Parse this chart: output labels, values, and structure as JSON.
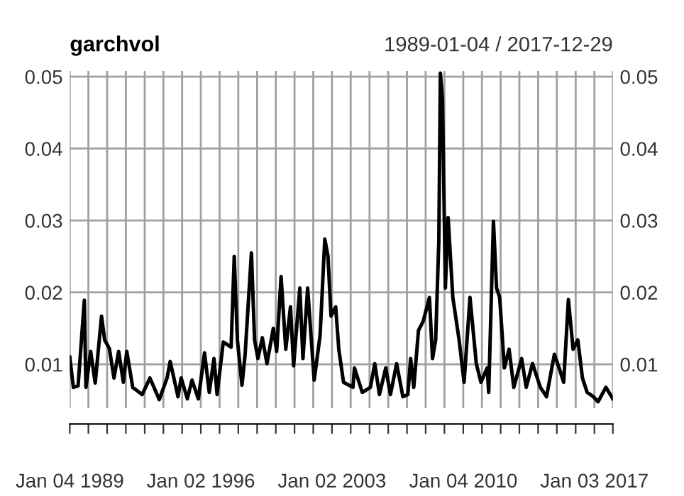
{
  "chart_data": {
    "type": "line",
    "title": "garchvol",
    "subtitle": "1989-01-04 / 2017-12-29",
    "x": [
      "1989-01-04",
      "1989-03",
      "1989-06",
      "1989-10",
      "1989-11",
      "1990-02",
      "1990-05",
      "1990-09",
      "1990-11",
      "1991-02",
      "1991-05",
      "1991-08",
      "1991-11",
      "1992-01-20",
      "1992-05",
      "1992-11",
      "1993-04",
      "1993-10",
      "1994-03",
      "1994-05",
      "1994-10",
      "1994-12",
      "1995-04",
      "1995-07",
      "1995-11",
      "1996-03",
      "1996-06",
      "1996-09",
      "1996-11",
      "1997-03",
      "1997-08",
      "1997-10",
      "1997-12",
      "1998-03",
      "1998-05",
      "1998-09",
      "1998-11",
      "1999-01-20",
      "1999-04",
      "1999-07",
      "1999-11",
      "2000-01-20",
      "2000-04",
      "2000-07",
      "2000-10",
      "2000-12",
      "2001-04",
      "2001-06",
      "2001-09",
      "2002-01-20",
      "2002-05",
      "2002-08",
      "2002-10",
      "2002-12",
      "2003-03",
      "2003-05",
      "2003-08",
      "2004-02",
      "2004-03",
      "2004-08",
      "2005-01-20",
      "2005-04",
      "2005-07",
      "2005-11",
      "2006-02",
      "2006-06",
      "2006-10",
      "2007-01-20",
      "2007-03",
      "2007-05",
      "2007-08",
      "2007-11",
      "2008-03",
      "2008-05",
      "2008-07",
      "2008-09",
      "2008-10",
      "2008-11-25",
      "2009-01-20",
      "2009-03",
      "2009-06",
      "2009-10",
      "2010-01-20",
      "2010-05",
      "2010-09",
      "2010-12",
      "2011-04",
      "2011-05",
      "2011-08",
      "2011-10",
      "2011-12",
      "2012-03",
      "2012-06",
      "2012-09",
      "2013-02",
      "2013-05",
      "2013-09",
      "2014-02",
      "2014-06",
      "2014-11",
      "2015-02",
      "2015-05",
      "2015-08",
      "2015-11",
      "2016-02",
      "2016-05",
      "2016-08",
      "2016-12",
      "2017-03",
      "2017-08",
      "2017-12-29"
    ],
    "series": [
      {
        "color": "#000000",
        "values": [
          0.011,
          0.0068,
          0.007,
          0.0189,
          0.0068,
          0.0118,
          0.0074,
          0.0167,
          0.0134,
          0.0122,
          0.0081,
          0.0118,
          0.0075,
          0.0118,
          0.0068,
          0.0058,
          0.0081,
          0.0051,
          0.0081,
          0.0104,
          0.0055,
          0.0081,
          0.0052,
          0.0078,
          0.0052,
          0.0116,
          0.0061,
          0.0108,
          0.0058,
          0.0131,
          0.0124,
          0.025,
          0.0134,
          0.0071,
          0.0114,
          0.0255,
          0.0134,
          0.0108,
          0.0137,
          0.0101,
          0.015,
          0.0118,
          0.0222,
          0.0121,
          0.018,
          0.0098,
          0.0206,
          0.0108,
          0.0206,
          0.0078,
          0.014,
          0.0274,
          0.0251,
          0.0167,
          0.018,
          0.0121,
          0.0075,
          0.0068,
          0.0095,
          0.0061,
          0.0068,
          0.0101,
          0.0058,
          0.0095,
          0.0058,
          0.0101,
          0.0055,
          0.0058,
          0.0108,
          0.0068,
          0.0147,
          0.016,
          0.0193,
          0.0108,
          0.0134,
          0.0272,
          0.0505,
          0.0469,
          0.0206,
          0.0304,
          0.0193,
          0.0134,
          0.0075,
          0.0193,
          0.0101,
          0.0075,
          0.0095,
          0.0061,
          0.0299,
          0.0206,
          0.0193,
          0.0095,
          0.0121,
          0.0068,
          0.0108,
          0.0068,
          0.0101,
          0.0068,
          0.0055,
          0.0114,
          0.0095,
          0.0075,
          0.019,
          0.0121,
          0.0134,
          0.0081,
          0.0061,
          0.0055,
          0.0048,
          0.0068,
          0.0052
        ]
      }
    ],
    "xlim": [
      "1989-01-04",
      "2017-12-29"
    ],
    "xticks": [
      {
        "value": "1989-01-04",
        "label": "Jan 04 1989"
      },
      {
        "value": "1990-01-02",
        "label": null
      },
      {
        "value": "1991-01-02",
        "label": null
      },
      {
        "value": "1992-01-02",
        "label": null
      },
      {
        "value": "1993-01-04",
        "label": null
      },
      {
        "value": "1994-01-03",
        "label": null
      },
      {
        "value": "1995-01-03",
        "label": null
      },
      {
        "value": "1996-01-02",
        "label": "Jan 02 1996"
      },
      {
        "value": "1997-01-02",
        "label": null
      },
      {
        "value": "1998-01-02",
        "label": null
      },
      {
        "value": "1999-01-04",
        "label": null
      },
      {
        "value": "2000-01-03",
        "label": null
      },
      {
        "value": "2001-01-02",
        "label": null
      },
      {
        "value": "2002-01-02",
        "label": null
      },
      {
        "value": "2003-01-02",
        "label": "Jan 02 2003"
      },
      {
        "value": "2004-01-02",
        "label": null
      },
      {
        "value": "2005-01-03",
        "label": null
      },
      {
        "value": "2006-01-03",
        "label": null
      },
      {
        "value": "2007-01-03",
        "label": null
      },
      {
        "value": "2008-01-02",
        "label": null
      },
      {
        "value": "2009-01-02",
        "label": null
      },
      {
        "value": "2010-01-04",
        "label": "Jan 04 2010"
      },
      {
        "value": "2011-01-03",
        "label": null
      },
      {
        "value": "2012-01-03",
        "label": null
      },
      {
        "value": "2013-01-02",
        "label": null
      },
      {
        "value": "2014-01-02",
        "label": null
      },
      {
        "value": "2015-01-02",
        "label": null
      },
      {
        "value": "2016-01-04",
        "label": null
      },
      {
        "value": "2017-01-03",
        "label": "Jan 03 2017"
      },
      {
        "value": "2017-12-29",
        "label": null
      }
    ],
    "ylim": [
      0.0039,
      0.0508
    ],
    "yticks": [
      0.01,
      0.02,
      0.03,
      0.04,
      0.05
    ],
    "y2lim": [
      0.0039,
      0.0508
    ],
    "y2ticks": [
      0.01,
      0.02,
      0.03,
      0.04,
      0.05
    ],
    "grid": true,
    "line_style": "solid"
  }
}
